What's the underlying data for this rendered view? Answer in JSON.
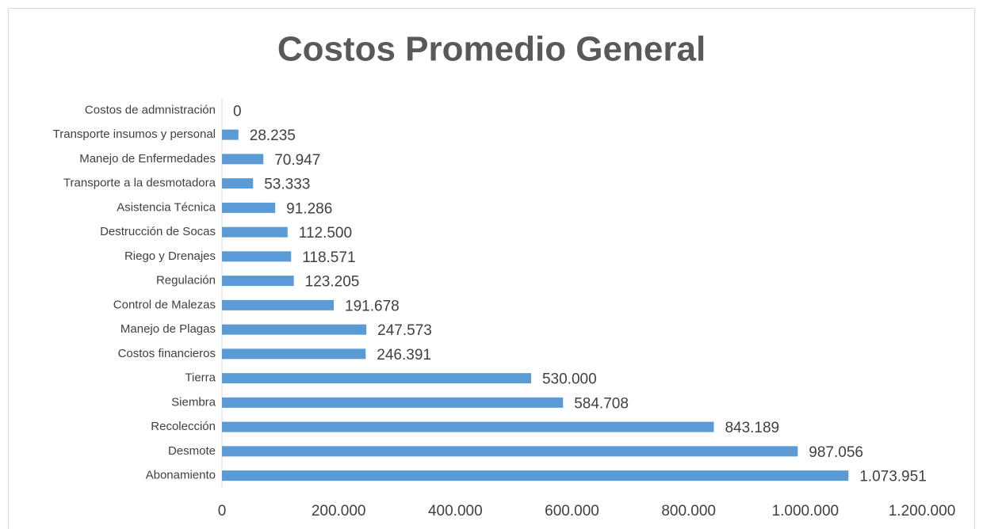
{
  "chart_data": {
    "type": "bar",
    "orientation": "horizontal",
    "title": "Costos Promedio General",
    "categories": [
      "Costos de admnistración",
      "Transporte insumos y personal",
      "Manejo de Enfermedades",
      "Transporte a la desmotadora",
      "Asistencia Técnica",
      "Destrucción de Socas",
      "Riego y Drenajes",
      "Regulación",
      "Control de Malezas",
      "Manejo de Plagas",
      "Costos financieros",
      "Tierra",
      "Siembra",
      "Recolección",
      "Desmote",
      "Abonamiento"
    ],
    "values": [
      0,
      28235,
      70947,
      53333,
      91286,
      112500,
      118571,
      123205,
      191678,
      247573,
      246391,
      530000,
      584708,
      843189,
      987056,
      1073951
    ],
    "value_labels": [
      "0",
      "28.235",
      "70.947",
      "53.333",
      "91.286",
      "112.500",
      "118.571",
      "123.205",
      "191.678",
      "247.573",
      "246.391",
      "530.000",
      "584.708",
      "843.189",
      "987.056",
      "1.073.951"
    ],
    "color": "#5b9bd5",
    "xlim": [
      0,
      1200000
    ],
    "xticks": [
      0,
      {
        "value": 200000,
        "label": "200.000"
      },
      {
        "value": 400000,
        "label": "400.000"
      },
      {
        "value": 600000,
        "label": "600.000"
      },
      {
        "value": 800000,
        "label": "800.000"
      },
      {
        "value": 1000000,
        "label": "1.000.000"
      },
      {
        "value": 1200000,
        "label": "1.200.000"
      }
    ],
    "grid": false
  }
}
